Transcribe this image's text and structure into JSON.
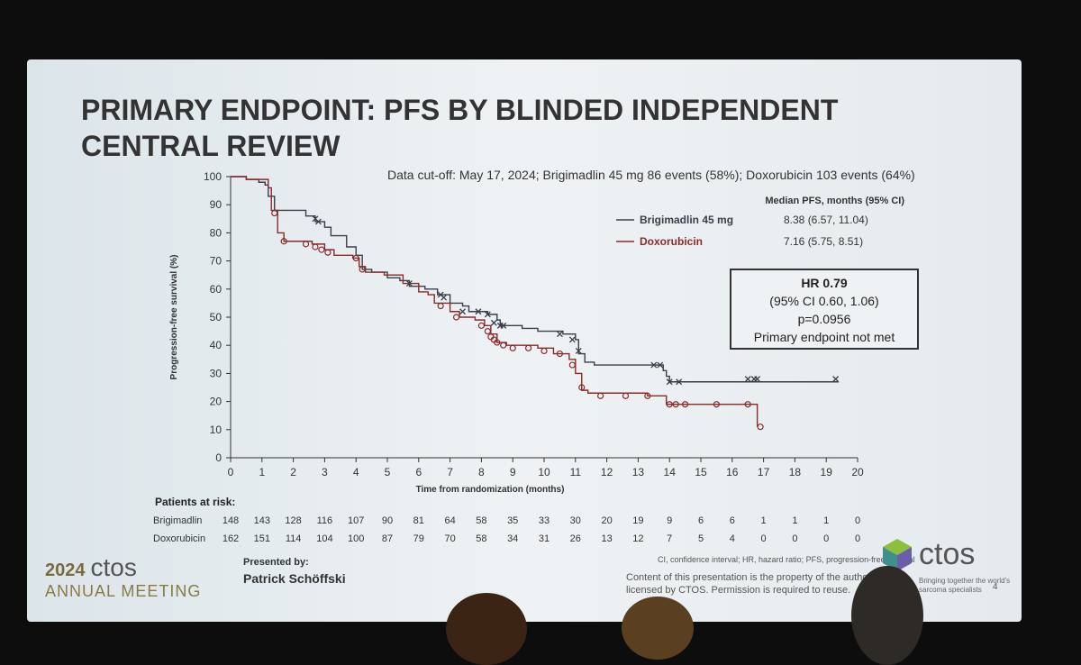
{
  "slide": {
    "title": "PRIMARY ENDPOINT: PFS BY BLINDED INDEPENDENT CENTRAL REVIEW",
    "cutoff_note": "Data cut-off: May 17, 2024; Brigimadlin 45 mg 86 events (58%); Doxorubicin 103 events (64%)",
    "presented_by_label": "Presented by:",
    "presenter": "Patrick Schöffski",
    "footnote": "CI, confidence interval; HR, hazard ratio; PFS, progression-free survival",
    "rights_notice": "Content of this presentation is the property of the author, licensed by CTOS. Permission is required to reuse.",
    "page_number": "4",
    "logo_left": {
      "year": "2024",
      "brand": "ctos",
      "tagline": "ANNUAL MEETING"
    },
    "logo_right": {
      "brand": "ctos",
      "tagline": "Bringing together the world's sarcoma specialists"
    }
  },
  "hr_box": {
    "hr": "HR 0.79",
    "ci": "(95% CI 0.60, 1.06)",
    "p": "p=0.0956",
    "note": "Primary endpoint not met"
  },
  "chart_data": {
    "type": "line",
    "xlabel": "Time from randomization (months)",
    "ylabel": "Progression-free survival (%)",
    "xlim": [
      0,
      20
    ],
    "ylim": [
      0,
      100
    ],
    "xticks": [
      0,
      1,
      2,
      3,
      4,
      5,
      6,
      7,
      8,
      9,
      10,
      11,
      12,
      13,
      14,
      15,
      16,
      17,
      18,
      19,
      20
    ],
    "yticks": [
      0,
      10,
      20,
      30,
      40,
      50,
      60,
      70,
      80,
      90,
      100
    ],
    "legend_title": "Median PFS, months (95% CI)",
    "colors": {
      "brigimadlin": "#3a3f4a",
      "doxorubicin": "#8b2a2a"
    },
    "series": [
      {
        "name": "Brigimadlin 45 mg",
        "median": "8.38 (6.57, 11.04)",
        "steps": [
          [
            0,
            100
          ],
          [
            0.5,
            99
          ],
          [
            0.9,
            98
          ],
          [
            1.1,
            97
          ],
          [
            1.2,
            93
          ],
          [
            1.4,
            88
          ],
          [
            2.4,
            86
          ],
          [
            2.7,
            84
          ],
          [
            3.0,
            82
          ],
          [
            3.2,
            79
          ],
          [
            3.7,
            75
          ],
          [
            4.0,
            72
          ],
          [
            4.2,
            67
          ],
          [
            4.5,
            66
          ],
          [
            5.0,
            64
          ],
          [
            5.4,
            63
          ],
          [
            5.7,
            61
          ],
          [
            6.2,
            60
          ],
          [
            6.6,
            58
          ],
          [
            7.0,
            55
          ],
          [
            7.4,
            54
          ],
          [
            7.6,
            52
          ],
          [
            8.2,
            51
          ],
          [
            8.5,
            49
          ],
          [
            8.6,
            47
          ],
          [
            9.3,
            46
          ],
          [
            9.8,
            45
          ],
          [
            10.6,
            44
          ],
          [
            11.0,
            42
          ],
          [
            11.1,
            37
          ],
          [
            11.3,
            34
          ],
          [
            11.6,
            33
          ],
          [
            13.6,
            33
          ],
          [
            13.8,
            31
          ],
          [
            13.9,
            29
          ],
          [
            14.0,
            27
          ],
          [
            19.4,
            27
          ]
        ],
        "censors": [
          [
            2.7,
            85
          ],
          [
            2.8,
            84
          ],
          [
            5.7,
            62
          ],
          [
            6.7,
            58
          ],
          [
            6.8,
            57
          ],
          [
            7.4,
            52
          ],
          [
            7.9,
            52
          ],
          [
            8.2,
            51
          ],
          [
            8.4,
            48
          ],
          [
            8.6,
            47
          ],
          [
            8.7,
            47
          ],
          [
            10.5,
            44
          ],
          [
            10.9,
            42
          ],
          [
            11.1,
            38
          ],
          [
            13.5,
            33
          ],
          [
            13.7,
            33
          ],
          [
            14.0,
            27
          ],
          [
            14.3,
            27
          ],
          [
            16.5,
            28
          ],
          [
            16.7,
            28
          ],
          [
            16.8,
            28
          ],
          [
            19.3,
            28
          ]
        ]
      },
      {
        "name": "Doxorubicin",
        "median": "7.16 (5.75, 8.51)",
        "steps": [
          [
            0,
            100
          ],
          [
            0.5,
            99
          ],
          [
            1.2,
            96
          ],
          [
            1.3,
            88
          ],
          [
            1.5,
            80
          ],
          [
            1.7,
            77
          ],
          [
            2.6,
            76
          ],
          [
            3.0,
            74
          ],
          [
            3.3,
            72
          ],
          [
            3.9,
            71
          ],
          [
            4.1,
            68
          ],
          [
            4.3,
            66
          ],
          [
            4.9,
            65
          ],
          [
            5.5,
            62
          ],
          [
            6.0,
            59
          ],
          [
            6.3,
            58
          ],
          [
            6.5,
            55
          ],
          [
            7.0,
            52
          ],
          [
            7.3,
            50
          ],
          [
            7.8,
            49
          ],
          [
            8.1,
            47
          ],
          [
            8.3,
            44
          ],
          [
            8.5,
            41
          ],
          [
            8.8,
            40
          ],
          [
            9.8,
            39
          ],
          [
            10.3,
            37
          ],
          [
            10.8,
            35
          ],
          [
            11.0,
            30
          ],
          [
            11.2,
            24
          ],
          [
            11.4,
            23
          ],
          [
            13.3,
            22
          ],
          [
            13.9,
            19
          ],
          [
            16.6,
            19
          ],
          [
            16.8,
            11
          ]
        ],
        "censors": [
          [
            1.4,
            87
          ],
          [
            1.7,
            77
          ],
          [
            2.4,
            76
          ],
          [
            2.7,
            75
          ],
          [
            2.9,
            74
          ],
          [
            3.1,
            73
          ],
          [
            4.0,
            71
          ],
          [
            4.2,
            67
          ],
          [
            6.7,
            54
          ],
          [
            7.2,
            50
          ],
          [
            8.0,
            47
          ],
          [
            8.2,
            45
          ],
          [
            8.3,
            43
          ],
          [
            8.4,
            42
          ],
          [
            8.5,
            41
          ],
          [
            8.7,
            40
          ],
          [
            9.0,
            39
          ],
          [
            9.5,
            39
          ],
          [
            10.0,
            38
          ],
          [
            10.5,
            37
          ],
          [
            10.9,
            33
          ],
          [
            11.2,
            25
          ],
          [
            11.8,
            22
          ],
          [
            12.6,
            22
          ],
          [
            13.3,
            22
          ],
          [
            14.0,
            19
          ],
          [
            14.2,
            19
          ],
          [
            14.5,
            19
          ],
          [
            15.5,
            19
          ],
          [
            16.5,
            19
          ],
          [
            16.9,
            11
          ]
        ]
      }
    ]
  },
  "risk_table": {
    "header": "Patients at risk:",
    "times": [
      0,
      1,
      2,
      3,
      4,
      5,
      6,
      7,
      8,
      9,
      10,
      11,
      12,
      13,
      14,
      15,
      16,
      17,
      18,
      19,
      20
    ],
    "rows": [
      {
        "label": "Brigimadlin",
        "values": [
          "148",
          "143",
          "128",
          "116",
          "107",
          "90",
          "81",
          "64",
          "58",
          "35",
          "33",
          "30",
          "20",
          "19",
          "9",
          "6",
          "6",
          "1",
          "1",
          "1",
          "0"
        ]
      },
      {
        "label": "Doxorubicin",
        "values": [
          "162",
          "151",
          "114",
          "104",
          "100",
          "87",
          "79",
          "70",
          "58",
          "34",
          "31",
          "26",
          "13",
          "12",
          "7",
          "5",
          "4",
          "0",
          "0",
          "0",
          "0"
        ]
      }
    ]
  }
}
